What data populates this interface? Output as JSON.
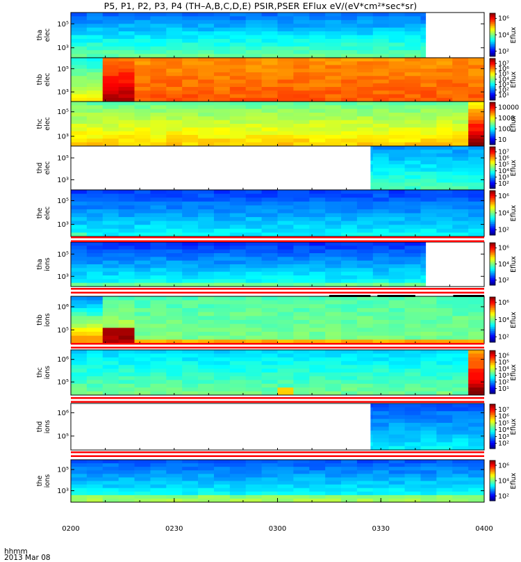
{
  "title": "P5, P1, P2, P3, P4 (TH–A,B,C,D,E) PSIR,PSER EFlux eV/(eV*cm²*sec*sr)",
  "footer": {
    "line1": "hhmm",
    "line2": "2013 Mar 08"
  },
  "colorbar_label": "Eflux",
  "chart_data": {
    "type": "heatmap",
    "title": "P5, P1, P2, P3, P4 (TH–A,B,C,D,E) PSIR,PSER EFlux eV/(eV*cm²*sec*sr)",
    "x_axis": {
      "ticks": [
        "0200",
        "0230",
        "0300",
        "0330",
        "0400"
      ],
      "range": [
        "0200",
        "0400"
      ],
      "label": "hhmm",
      "date": "2013 Mar 08"
    },
    "panels": [
      {
        "id": "tha-elec",
        "ylabel": [
          "tha",
          "elec"
        ],
        "yticks": [
          "10⁵",
          "10³"
        ],
        "cbar_ticks": [
          "10⁶",
          "10⁴",
          "10²"
        ],
        "data_until": "0343"
      },
      {
        "id": "thb-elec",
        "ylabel": [
          "thb",
          "elec"
        ],
        "yticks": [
          "10⁵",
          "10³"
        ],
        "cbar_ticks": [
          "10⁷",
          "10⁶",
          "10⁵",
          "10⁴",
          "10³",
          "10²",
          "10¹"
        ]
      },
      {
        "id": "thc-elec",
        "ylabel": [
          "thc",
          "elec"
        ],
        "yticks": [
          "10⁵",
          "10³"
        ],
        "cbar_ticks": [
          "10000",
          "1000",
          "100",
          "10"
        ]
      },
      {
        "id": "thd-elec",
        "ylabel": [
          "thd",
          "elec"
        ],
        "yticks": [
          "10⁵",
          "10³"
        ],
        "cbar_ticks": [
          "10⁷",
          "10⁶",
          "10⁵",
          "10⁴",
          "10³",
          "10²"
        ],
        "data_from": "0327"
      },
      {
        "id": "the-elec",
        "ylabel": [
          "the",
          "elec"
        ],
        "yticks": [
          "10⁵",
          "10³"
        ],
        "cbar_ticks": [
          "10⁶",
          "10⁴",
          "10²"
        ]
      },
      {
        "id": "tha-ions",
        "ylabel": [
          "tha",
          "ions"
        ],
        "yticks": [
          "10⁵",
          "10³"
        ],
        "cbar_ticks": [
          "10⁶",
          "10⁴",
          "10²"
        ],
        "data_until": "0343"
      },
      {
        "id": "thb-ions",
        "ylabel": [
          "thb",
          "ions"
        ],
        "yticks": [
          "10⁶",
          "10⁵"
        ],
        "cbar_ticks": [
          "10⁶",
          "10⁴",
          "10²"
        ]
      },
      {
        "id": "thc-ions",
        "ylabel": [
          "thc",
          "ions"
        ],
        "yticks": [
          "10⁶",
          "10⁵"
        ],
        "cbar_ticks": [
          "10⁶",
          "10⁵",
          "10⁴",
          "10³",
          "10²",
          "10¹"
        ]
      },
      {
        "id": "thd-ions",
        "ylabel": [
          "thd",
          "ions"
        ],
        "yticks": [
          "10⁶",
          "10⁵"
        ],
        "cbar_ticks": [
          "10⁷",
          "10⁶",
          "10⁵",
          "10⁴",
          "10³",
          "10²"
        ],
        "data_from": "0327"
      },
      {
        "id": "the-ions",
        "ylabel": [
          "the",
          "ions"
        ],
        "yticks": [
          "10⁵",
          "10³"
        ],
        "cbar_ticks": [
          "10⁶",
          "10⁴",
          "10²"
        ]
      }
    ]
  }
}
